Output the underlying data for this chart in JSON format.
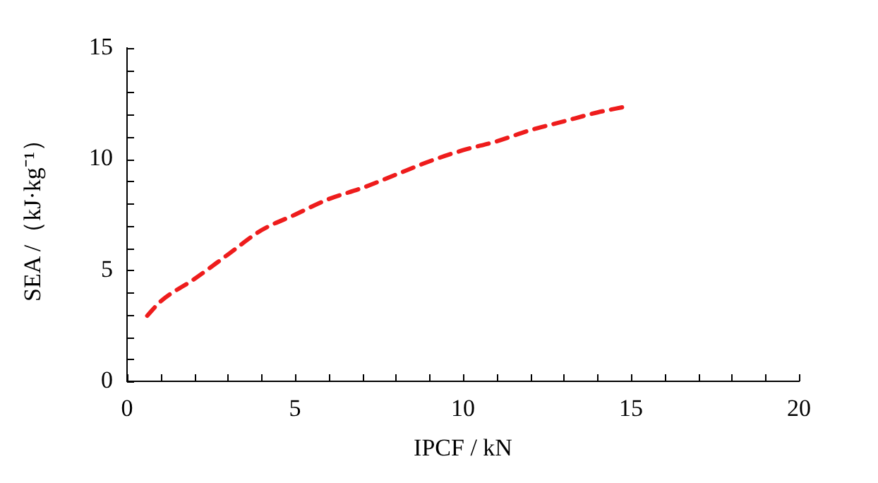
{
  "chart_data": {
    "type": "line",
    "xlabel": "IPCF / kN",
    "ylabel": "SEA /（kJ·kg⁻¹）",
    "x": [
      0.6,
      1,
      2,
      3,
      4,
      5,
      6,
      7,
      8,
      9,
      10,
      11,
      12,
      13,
      14,
      14.8
    ],
    "series": [
      {
        "color": "#ee1c1c",
        "values": [
          2.95,
          3.6,
          4.6,
          5.7,
          6.8,
          7.5,
          8.2,
          8.7,
          9.3,
          9.9,
          10.4,
          10.8,
          11.3,
          11.7,
          12.1,
          12.35
        ]
      }
    ],
    "xlim": [
      0,
      20
    ],
    "xticks": [
      0,
      {
        "value": 1,
        "label": null
      },
      {
        "value": 2,
        "label": null
      },
      {
        "value": 3,
        "label": null
      },
      {
        "value": 4,
        "label": null
      },
      5,
      {
        "value": 6,
        "label": null
      },
      {
        "value": 7,
        "label": null
      },
      {
        "value": 8,
        "label": null
      },
      {
        "value": 9,
        "label": null
      },
      10,
      {
        "value": 11,
        "label": null
      },
      {
        "value": 12,
        "label": null
      },
      {
        "value": 13,
        "label": null
      },
      {
        "value": 14,
        "label": null
      },
      15,
      {
        "value": 16,
        "label": null
      },
      {
        "value": 17,
        "label": null
      },
      {
        "value": 18,
        "label": null
      },
      {
        "value": 19,
        "label": null
      },
      20
    ],
    "ylim": [
      0,
      15
    ],
    "yticks": [
      0,
      {
        "value": 1,
        "label": null
      },
      {
        "value": 2,
        "label": null
      },
      {
        "value": 3,
        "label": null
      },
      {
        "value": 4,
        "label": null
      },
      5,
      {
        "value": 6,
        "label": null
      },
      {
        "value": 7,
        "label": null
      },
      {
        "value": 8,
        "label": null
      },
      {
        "value": 9,
        "label": null
      },
      10,
      {
        "value": 11,
        "label": null
      },
      {
        "value": 12,
        "label": null
      },
      {
        "value": 13,
        "label": null
      },
      {
        "value": 14,
        "label": null
      },
      15
    ],
    "grid": false,
    "legend": false,
    "marker": "none",
    "line_style": "dashed"
  }
}
